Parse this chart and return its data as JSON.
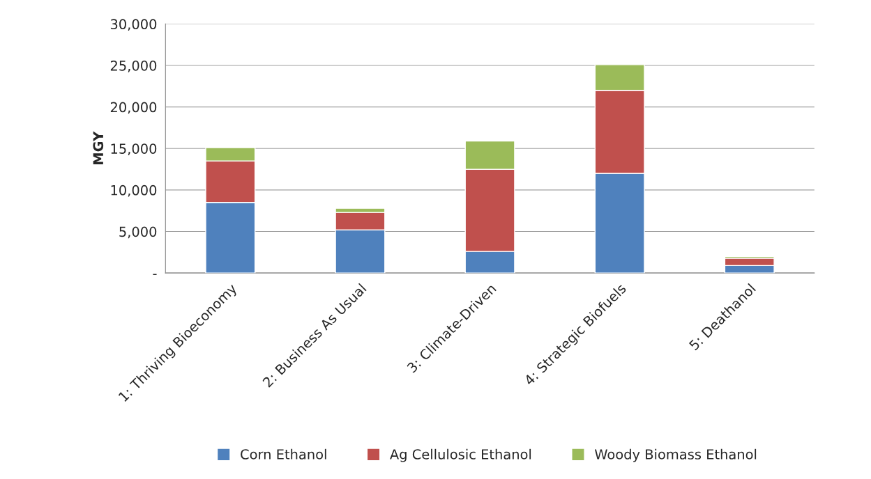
{
  "chart_data": {
    "type": "bar",
    "stacked": true,
    "ylabel": "MGY",
    "categories": [
      "1: Thriving Bioeconomy",
      "2: Business As Usual",
      "3: Climate-Driven",
      "4: Strategic Biofuels",
      "5: Deathanol"
    ],
    "series": [
      {
        "name": "Corn Ethanol",
        "color": "#4f81bd",
        "values": [
          8500,
          5200,
          2600,
          12000,
          900
        ]
      },
      {
        "name": "Ag Cellulosic Ethanol",
        "color": "#c0504d",
        "values": [
          5000,
          2100,
          9900,
          10000,
          900
        ]
      },
      {
        "name": "Woody Biomass Ethanol",
        "color": "#9bbb59",
        "values": [
          1600,
          500,
          3400,
          3100,
          200
        ]
      }
    ],
    "ylim": [
      0,
      30000
    ],
    "yticks": [
      {
        "value": 0,
        "label": "-"
      },
      {
        "value": 5000,
        "label": "5,000"
      },
      {
        "value": 10000,
        "label": "10,000"
      },
      {
        "value": 15000,
        "label": "15,000"
      },
      {
        "value": 20000,
        "label": "20,000"
      },
      {
        "value": 25000,
        "label": "25,000"
      },
      {
        "value": 30000,
        "label": "30,000"
      }
    ],
    "grid": "y",
    "legend": "bottom"
  }
}
